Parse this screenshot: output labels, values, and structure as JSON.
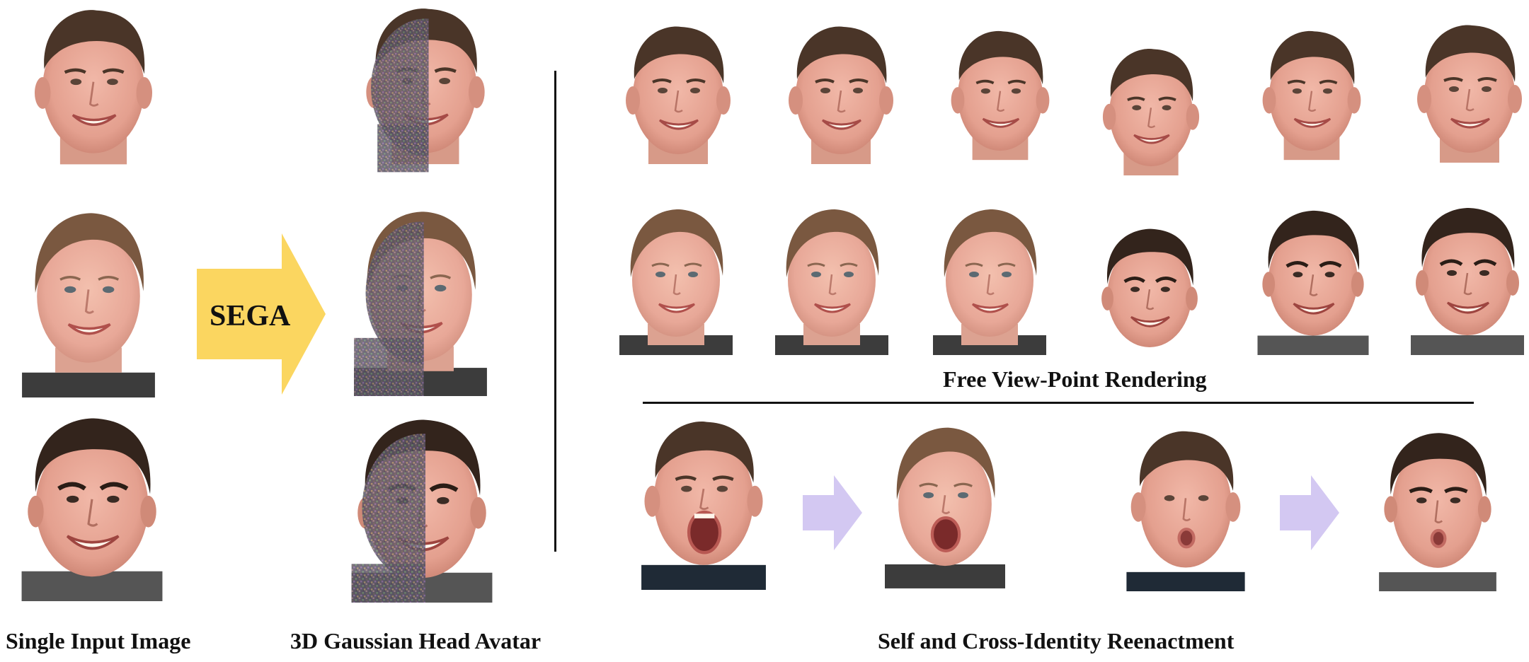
{
  "arrow_label": "SEGA",
  "captions": {
    "input": "Single Input Image",
    "avatar": "3D Gaussian Head Avatar",
    "free_view": "Free View-Point Rendering",
    "reenactment": "Self and Cross-Identity Reenactment"
  },
  "colors": {
    "arrow_main": "#FBD660",
    "arrow_small": "#D3C8F2",
    "text": "#111111",
    "skin": "#E9A99A",
    "hair_dark": "#3E2E24",
    "hair_light": "#6A4A35"
  },
  "subjects": [
    "man-curly-hair",
    "woman-ponytail",
    "man-dark-hair"
  ]
}
